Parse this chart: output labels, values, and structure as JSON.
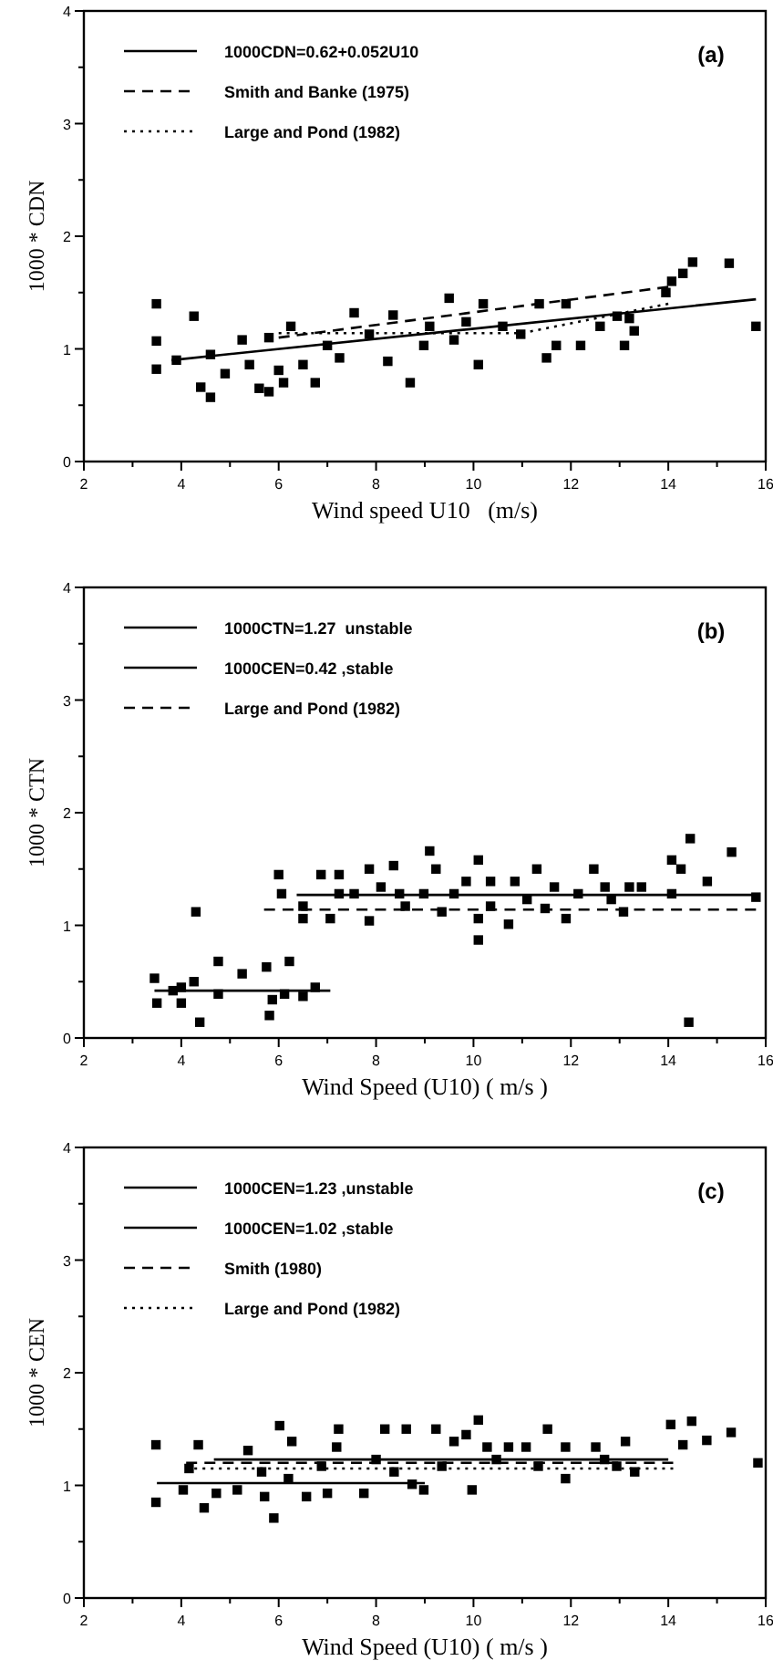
{
  "chart_data": [
    {
      "type": "scatter",
      "xlabel": "Wind speed U10   (m/s)",
      "ylabel": "1000 * CDN",
      "annotations": [
        "(a)"
      ],
      "xlim": [
        2,
        16
      ],
      "ylim": [
        0,
        4
      ],
      "xticks": [
        2,
        {
          "value": 3,
          "label": null
        },
        4,
        {
          "value": 5,
          "label": null
        },
        6,
        {
          "value": 7,
          "label": null
        },
        8,
        {
          "value": 9,
          "label": null
        },
        10,
        {
          "value": 11,
          "label": null
        },
        12,
        {
          "value": 13,
          "label": null
        },
        14,
        {
          "value": 15,
          "label": null
        },
        16
      ],
      "yticks": [
        0,
        {
          "value": 0.5,
          "label": null
        },
        1,
        {
          "value": 1.5,
          "label": null
        },
        2,
        {
          "value": 2.5,
          "label": null
        },
        3,
        {
          "value": 3.5,
          "label": null
        },
        4
      ],
      "legend": "top left",
      "series": [
        {
          "name": "1000CDN=0.62+0.052U10",
          "type": "line",
          "line_style": "solid",
          "color": "#000000",
          "x": [
            3.8,
            15.8
          ],
          "values": [
            0.9,
            1.44
          ]
        },
        {
          "name": "Smith and Banke (1975)",
          "type": "line",
          "line_style": "dashed",
          "color": "#000000",
          "x": [
            6,
            14
          ],
          "values": [
            1.1,
            1.55
          ]
        },
        {
          "name": "Large and Pond (1982)",
          "type": "line",
          "line_style": "dotted",
          "color": "#000000",
          "x": [
            6,
            11,
            14
          ],
          "values": [
            1.14,
            1.14,
            1.4
          ]
        },
        {
          "marker": "square",
          "color": "#000000",
          "x": [
            3.49,
            3.49,
            3.49,
            3.9,
            4.26,
            4.4,
            4.6,
            4.6,
            4.9,
            5.25,
            5.4,
            5.6,
            5.8,
            5.8,
            6.0,
            6.1,
            6.25,
            6.5,
            6.75,
            7.0,
            7.25,
            7.55,
            7.86,
            8.24,
            8.35,
            8.7,
            8.98,
            9.1,
            9.5,
            9.6,
            9.85,
            10.1,
            10.2,
            10.6,
            10.97,
            11.35,
            11.5,
            11.7,
            11.9,
            12.2,
            12.6,
            12.95,
            13.1,
            13.2,
            13.3,
            13.95,
            14.07,
            14.3,
            14.5,
            15.25,
            15.8
          ],
          "values": [
            1.4,
            1.07,
            0.82,
            0.9,
            1.29,
            0.66,
            0.57,
            0.95,
            0.78,
            1.08,
            0.86,
            0.65,
            0.62,
            1.1,
            0.81,
            0.7,
            1.2,
            0.86,
            0.7,
            1.03,
            0.92,
            1.32,
            1.13,
            0.89,
            1.3,
            0.7,
            1.03,
            1.2,
            1.45,
            1.08,
            1.24,
            0.86,
            1.4,
            1.2,
            1.13,
            1.4,
            0.92,
            1.03,
            1.4,
            1.03,
            1.2,
            1.29,
            1.03,
            1.27,
            1.16,
            1.5,
            1.6,
            1.67,
            1.77,
            1.76,
            1.2
          ]
        }
      ]
    },
    {
      "type": "scatter",
      "xlabel": "Wind Speed (U10) ( m/s )",
      "ylabel": "1000 * CTN",
      "annotations": [
        "(b)"
      ],
      "xlim": [
        2,
        16
      ],
      "ylim": [
        0,
        4
      ],
      "xticks": [
        2,
        {
          "value": 3,
          "label": null
        },
        4,
        {
          "value": 5,
          "label": null
        },
        6,
        {
          "value": 7,
          "label": null
        },
        8,
        {
          "value": 9,
          "label": null
        },
        10,
        {
          "value": 11,
          "label": null
        },
        12,
        {
          "value": 13,
          "label": null
        },
        14,
        {
          "value": 15,
          "label": null
        },
        16
      ],
      "yticks": [
        0,
        {
          "value": 0.5,
          "label": null
        },
        1,
        {
          "value": 1.5,
          "label": null
        },
        2,
        {
          "value": 2.5,
          "label": null
        },
        3,
        {
          "value": 3.5,
          "label": null
        },
        4
      ],
      "legend": "top left",
      "series": [
        {
          "name": "1000CTN=1.27  unstable",
          "type": "line",
          "line_style": "solid",
          "color": "#000000",
          "x": [
            6.37,
            15.87
          ],
          "values": [
            1.27,
            1.27
          ]
        },
        {
          "name": "1000CEN=0.42 ,stable",
          "type": "line",
          "line_style": "solid",
          "color": "#000000",
          "x": [
            3.45,
            7.06
          ],
          "values": [
            0.42,
            0.42
          ]
        },
        {
          "name": "Large and Pond (1982)",
          "type": "line",
          "line_style": "dashed",
          "color": "#000000",
          "x": [
            5.7,
            15.8
          ],
          "values": [
            1.14,
            1.14
          ]
        },
        {
          "marker": "square",
          "color": "#000000",
          "x": [
            3.45,
            3.5,
            3.83,
            4.0,
            4.0,
            4.26,
            4.38,
            4.76,
            4.76,
            5.25,
            5.75,
            5.81,
            5.87,
            6.12,
            6.22,
            6.5,
            6.75
          ],
          "values": [
            0.53,
            0.31,
            0.42,
            0.45,
            0.31,
            0.5,
            0.14,
            0.68,
            0.39,
            0.57,
            0.63,
            0.2,
            0.34,
            0.39,
            0.68,
            0.37,
            0.45
          ]
        },
        {
          "marker": "square",
          "color": "#000000",
          "x": [
            4.3,
            6.0,
            6.06,
            6.5,
            6.5,
            6.87,
            7.06,
            7.24,
            7.24,
            7.55,
            7.86,
            7.86,
            8.1,
            8.36,
            8.6,
            8.48,
            8.98,
            9.1,
            9.23,
            9.35,
            9.6,
            9.85,
            10.1,
            10.1,
            10.1,
            10.35,
            10.35,
            10.72,
            10.85,
            11.1,
            11.3,
            11.47,
            11.66,
            11.9,
            12.15,
            12.47,
            12.7,
            12.83,
            13.08,
            13.2,
            13.45,
            14.07,
            14.07,
            14.26,
            14.45,
            14.42,
            14.8,
            15.3,
            15.8
          ],
          "values": [
            1.12,
            1.45,
            1.28,
            1.17,
            1.06,
            1.45,
            1.06,
            1.45,
            1.28,
            1.28,
            1.5,
            1.04,
            1.34,
            1.53,
            1.17,
            1.28,
            1.28,
            1.66,
            1.5,
            1.12,
            1.28,
            1.39,
            1.58,
            1.06,
            0.87,
            1.39,
            1.17,
            1.01,
            1.39,
            1.23,
            1.5,
            1.15,
            1.34,
            1.06,
            1.28,
            1.5,
            1.34,
            1.23,
            1.12,
            1.34,
            1.34,
            1.58,
            1.28,
            1.5,
            1.77,
            0.14,
            1.39,
            1.65,
            1.25
          ]
        }
      ]
    },
    {
      "type": "scatter",
      "xlabel": "Wind Speed (U10) ( m/s )",
      "ylabel": "1000 * CEN",
      "annotations": [
        "(c)"
      ],
      "xlim": [
        2,
        16
      ],
      "ylim": [
        0,
        4
      ],
      "xticks": [
        2,
        {
          "value": 3,
          "label": null
        },
        4,
        {
          "value": 5,
          "label": null
        },
        6,
        {
          "value": 7,
          "label": null
        },
        8,
        {
          "value": 9,
          "label": null
        },
        10,
        {
          "value": 11,
          "label": null
        },
        12,
        {
          "value": 13,
          "label": null
        },
        14,
        {
          "value": 15,
          "label": null
        },
        16
      ],
      "yticks": [
        0,
        {
          "value": 0.5,
          "label": null
        },
        1,
        {
          "value": 1.5,
          "label": null
        },
        2,
        {
          "value": 2.5,
          "label": null
        },
        3,
        {
          "value": 3.5,
          "label": null
        },
        4
      ],
      "legend": "top left",
      "series": [
        {
          "name": "1000CEN=1.23 ,unstable",
          "type": "line",
          "line_style": "solid",
          "color": "#000000",
          "x": [
            4.67,
            14.0
          ],
          "values": [
            1.23,
            1.23
          ]
        },
        {
          "name": "1000CEN=1.02 ,stable",
          "type": "line",
          "line_style": "solid",
          "color": "#000000",
          "x": [
            3.5,
            9.0
          ],
          "values": [
            1.02,
            1.02
          ]
        },
        {
          "name": "Smith (1980)",
          "type": "line",
          "line_style": "dashed",
          "color": "#000000",
          "x": [
            4.1,
            14.1
          ],
          "values": [
            1.2,
            1.2
          ]
        },
        {
          "name": "Large and Pond (1982)",
          "type": "line",
          "line_style": "dotted",
          "color": "#000000",
          "x": [
            4.1,
            14.1
          ],
          "values": [
            1.15,
            1.15
          ]
        },
        {
          "marker": "square",
          "color": "#000000",
          "x": [
            3.48,
            3.48,
            4.04,
            4.16,
            4.35,
            4.47,
            4.72,
            5.15,
            5.37,
            5.65,
            5.71,
            5.9,
            6.02,
            6.2,
            6.27,
            6.57,
            6.88,
            7.0,
            7.19,
            7.23,
            7.75,
            8.0,
            8.18,
            8.37,
            8.62,
            8.74,
            8.98,
            9.23,
            9.35,
            9.6,
            9.85,
            9.97,
            10.1,
            10.28,
            10.47,
            10.72,
            11.08,
            11.33,
            11.52,
            11.89,
            11.89,
            12.51,
            12.69,
            12.94,
            13.12,
            13.31,
            14.05,
            14.3,
            14.48,
            14.79,
            15.29,
            15.84
          ],
          "values": [
            1.36,
            0.85,
            0.96,
            1.15,
            1.36,
            0.8,
            0.93,
            0.96,
            1.31,
            1.12,
            0.9,
            0.71,
            1.53,
            1.06,
            1.39,
            0.9,
            1.17,
            0.93,
            1.34,
            1.5,
            0.93,
            1.23,
            1.5,
            1.12,
            1.5,
            1.01,
            0.96,
            1.5,
            1.17,
            1.39,
            1.45,
            0.96,
            1.58,
            1.34,
            1.23,
            1.34,
            1.34,
            1.17,
            1.5,
            1.06,
            1.34,
            1.34,
            1.23,
            1.17,
            1.39,
            1.12,
            1.54,
            1.36,
            1.57,
            1.4,
            1.47,
            1.2
          ]
        }
      ]
    }
  ]
}
